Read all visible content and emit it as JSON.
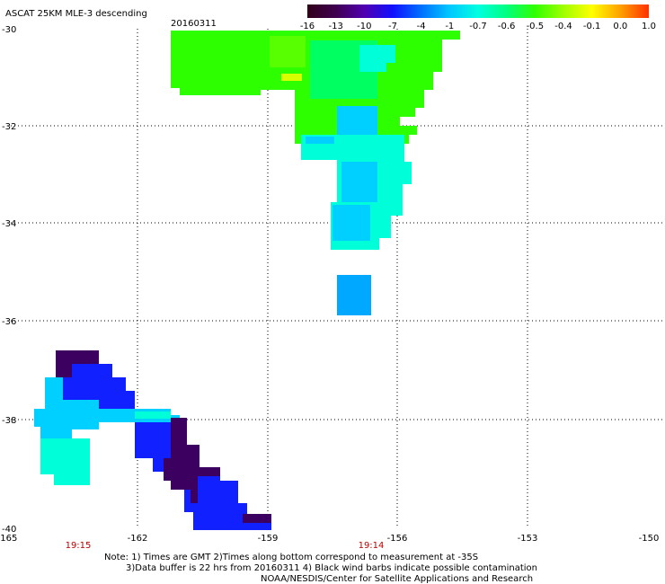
{
  "title": "ASCAT 25KM MLE-3 descending",
  "date": "20160311",
  "colorbar": {
    "labels": [
      "-16",
      "-13",
      "-10",
      "-7",
      "-4",
      "-1",
      "-0.7",
      "-0.6",
      "-0.5",
      "-0.4",
      "-0.1",
      "0.0",
      "1.0"
    ],
    "colors": [
      "#300018",
      "#400050",
      "#5000b0",
      "#1010ff",
      "#0070ff",
      "#00c8ff",
      "#00ffe0",
      "#00ff80",
      "#30ff00",
      "#a0ff00",
      "#ffff00",
      "#ffa000",
      "#ff3000"
    ]
  },
  "lat_labels": [
    "-30",
    "-32",
    "-34",
    "-36",
    "-38",
    "-40"
  ],
  "lon_labels": [
    "-165",
    "-162",
    "-159",
    "-156",
    "-153",
    "-150"
  ],
  "time_labels": [
    "19:15",
    "19:14"
  ],
  "notes": {
    "line1": "Note: 1) Times are GMT 2)Times along bottom correspond to measurement at -35S",
    "line2": "3)Data buffer is 22 hrs from 20160311 4) Black wind barbs indicate possible contamination",
    "line3": "NOAA/NESDIS/Center for Satellite Applications and Research"
  },
  "map_data": {
    "lat_range": [
      -40,
      -30
    ],
    "lon_range": [
      -165,
      -150
    ],
    "swaths": [
      {
        "region": "north",
        "value_category": "-0.5",
        "color": "#2eff00"
      },
      {
        "region": "north-center",
        "value_category": "-0.7",
        "color": "#00ffd8"
      },
      {
        "region": "center-south",
        "value_category": "-1",
        "color": "#00d0ff"
      },
      {
        "region": "isolated",
        "value_category": "-4",
        "color": "#00a8ff"
      },
      {
        "region": "southwest",
        "value_category": "-7",
        "color": "#1020ff"
      },
      {
        "region": "southwest-edge",
        "value_category": "-13",
        "color": "#3c0060"
      }
    ]
  }
}
